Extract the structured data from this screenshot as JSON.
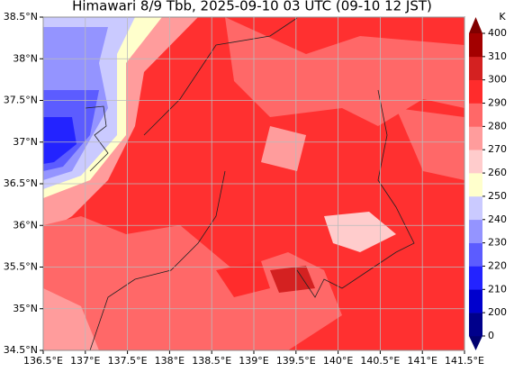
{
  "title": "Himawari 8/9 Tbb, 2025-09-10 03 UTC (09-10 12 JST)",
  "map": {
    "xlim": [
      136.5,
      141.5
    ],
    "ylim": [
      34.5,
      38.5
    ],
    "xticks": [
      {
        "value": 136.5,
        "label": "136.5°E"
      },
      {
        "value": 137,
        "label": "137°E"
      },
      {
        "value": 137.5,
        "label": "137.5°E"
      },
      {
        "value": 138,
        "label": "138°E"
      },
      {
        "value": 138.5,
        "label": "138.5°E"
      },
      {
        "value": 139,
        "label": "139°E"
      },
      {
        "value": 139.5,
        "label": "139.5°E"
      },
      {
        "value": 140,
        "label": "140°E"
      },
      {
        "value": 140.5,
        "label": "140.5°E"
      },
      {
        "value": 141,
        "label": "141°E"
      },
      {
        "value": 141.5,
        "label": "141.5°E"
      }
    ],
    "yticks": [
      {
        "value": 34.5,
        "label": "34.5°N"
      },
      {
        "value": 35,
        "label": "35°N"
      },
      {
        "value": 35.5,
        "label": "35.5°N"
      },
      {
        "value": 36,
        "label": "36°N"
      },
      {
        "value": 36.5,
        "label": "36.5°N"
      },
      {
        "value": 37,
        "label": "37°N"
      },
      {
        "value": 37.5,
        "label": "37.5°N"
      },
      {
        "value": 38,
        "label": "38°N"
      },
      {
        "value": 38.5,
        "label": "38.5°N"
      }
    ],
    "grid": true
  },
  "colorbar": {
    "unit": "K",
    "levels": [
      0,
      200,
      210,
      220,
      230,
      240,
      250,
      260,
      270,
      280,
      290,
      300,
      310,
      400
    ],
    "colors": [
      "#00008b",
      "#0000cd",
      "#2323ff",
      "#5c5cff",
      "#9494ff",
      "#cacaff",
      "#ffffcc",
      "#ffcccc",
      "#ff9c9c",
      "#ff6868",
      "#ff2c2c",
      "#d42121",
      "#a30000"
    ],
    "under_color": "#000070",
    "over_color": "#800000"
  }
}
